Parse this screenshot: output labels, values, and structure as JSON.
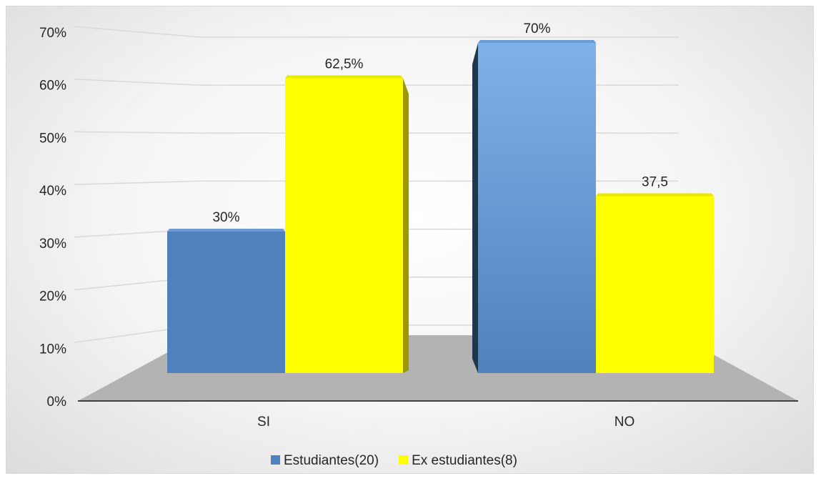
{
  "chart_data": {
    "type": "bar",
    "categories": [
      "SI",
      "NO"
    ],
    "series": [
      {
        "name": "Estudiantes(20)",
        "values": [
          30,
          70
        ],
        "labels": [
          "30%",
          "70%"
        ],
        "color": "#4f81bd"
      },
      {
        "name": "Ex estudiantes(8)",
        "values": [
          62.5,
          37.5
        ],
        "labels": [
          "62,5%",
          "37,5"
        ],
        "color": "#ffff00"
      }
    ],
    "ylim": [
      0,
      70
    ],
    "ytick_step": 10,
    "ytick_labels": [
      "0%",
      "10%",
      "20%",
      "30%",
      "40%",
      "50%",
      "60%",
      "70%"
    ],
    "grid": true,
    "legend": "bottom"
  }
}
